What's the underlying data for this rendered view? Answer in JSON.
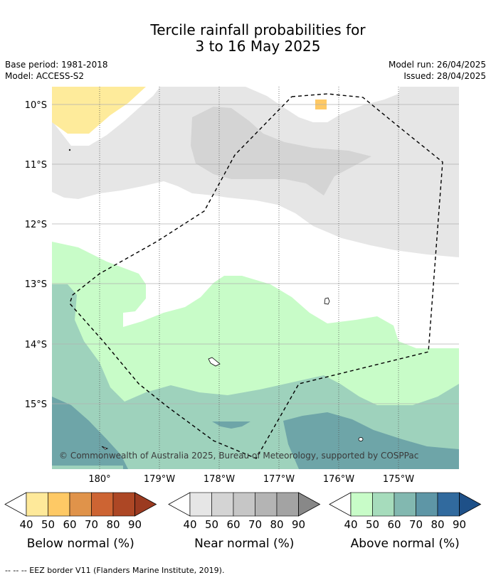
{
  "title_line1": "Tercile rainfall probabilities for",
  "title_line2": "3 to 16 May 2025",
  "base_period": "Base period: 1981-2018",
  "model": "Model: ACCESS-S2",
  "model_run": "Model run: 26/04/2025",
  "issued": "Issued: 28/04/2025",
  "lat_labels": [
    "10°S",
    "11°S",
    "12°S",
    "13°S",
    "14°S",
    "15°S"
  ],
  "lon_labels": [
    "180°",
    "179°W",
    "178°W",
    "177°W",
    "176°W",
    "175°W"
  ],
  "copyright": "© Commonwealth of Australia 2025, Bureau of Meteorology, supported by COSPPac",
  "legends": [
    {
      "title": "Below normal (%)",
      "ticks": [
        "40",
        "50",
        "60",
        "70",
        "80",
        "90"
      ],
      "colors": [
        "#fee99a",
        "#fec965",
        "#e0934a",
        "#cd6433",
        "#ad4725",
        "#9b3a20"
      ]
    },
    {
      "title": "Near normal (%)",
      "ticks": [
        "40",
        "50",
        "60",
        "70",
        "80",
        "90"
      ],
      "colors": [
        "#e6e6e6",
        "#d4d4d4",
        "#c6c6c6",
        "#b4b4b4",
        "#a3a3a3",
        "#888888"
      ]
    },
    {
      "title": "Above normal (%)",
      "ticks": [
        "40",
        "50",
        "60",
        "70",
        "80",
        "90"
      ],
      "colors": [
        "#c8fcc8",
        "#a6dcbc",
        "#82b8b0",
        "#5e96a6",
        "#316a9e",
        "#1e5088"
      ]
    }
  ],
  "footer": "-- -- -- EEZ border V11 (Flanders Marine Institute, 2019).",
  "colors": {
    "near_40": "#e6e6e6",
    "near_50": "#d4d4d4",
    "below_40": "#feeb9b",
    "below_50": "#fec965",
    "above_40": "#c8fcc8",
    "above_50": "#9ed2bc",
    "above_60": "#6ea5a8"
  }
}
